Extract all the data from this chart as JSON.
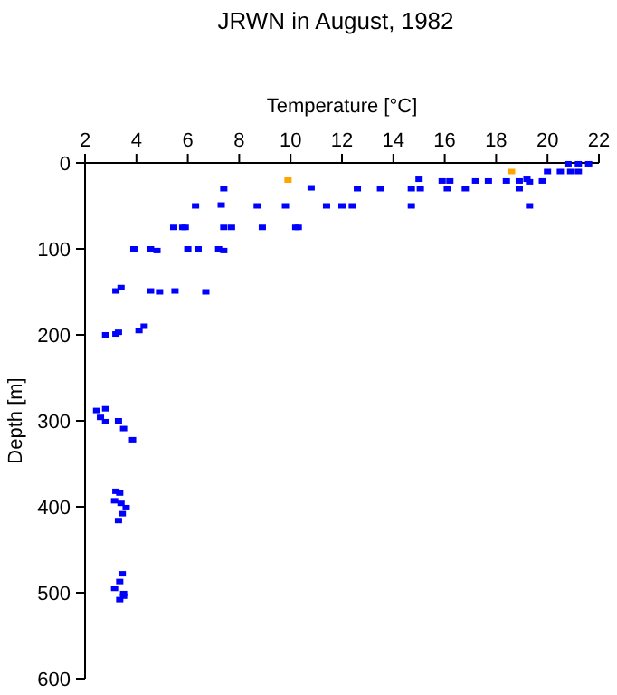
{
  "chart_data": {
    "type": "scatter",
    "title": "JRWN in August, 1982",
    "xlabel": "Temperature [°C]",
    "ylabel": "Depth [m]",
    "xlim": [
      2,
      22
    ],
    "xticks": [
      2,
      4,
      6,
      8,
      10,
      12,
      14,
      16,
      18,
      20,
      22
    ],
    "ylim": [
      600,
      0
    ],
    "yticks": [
      0,
      100,
      200,
      300,
      400,
      500,
      600
    ],
    "marker": "square",
    "grid": false,
    "series": [
      {
        "color": "#0000ff",
        "x": [
          7.4,
          10.8,
          6.3,
          7.3,
          8.7,
          9.8,
          11.4,
          12.0,
          5.45,
          5.8,
          5.9,
          7.4,
          7.7,
          8.9,
          10.2,
          10.3,
          3.9,
          4.55,
          4.8,
          6.0,
          6.4,
          7.2,
          7.4,
          3.4,
          3.2,
          4.55,
          4.9,
          5.5,
          6.7,
          2.8,
          3.2,
          3.3,
          4.1,
          4.3,
          15.0,
          15.9,
          16.2,
          17.2,
          17.7,
          18.4,
          18.9,
          19.2,
          19.8,
          20.0,
          20.5,
          20.8,
          21.2,
          21.6,
          20.9,
          21.2,
          12.6,
          13.5,
          14.7,
          15.05,
          16.1,
          16.8,
          18.9,
          19.3,
          12.4,
          14.7,
          19.3,
          2.45,
          2.6,
          2.8,
          2.8,
          3.3,
          3.5,
          3.85,
          3.2,
          3.35,
          3.15,
          3.4,
          3.6,
          3.45,
          3.3,
          3.45,
          3.35,
          3.15,
          3.5,
          3.5,
          3.35
        ],
        "values": [
          30,
          29,
          50,
          49,
          50,
          50,
          50,
          50,
          75,
          75,
          75,
          75,
          75,
          75,
          75,
          75,
          100,
          100,
          102,
          100,
          100,
          100,
          102,
          145,
          149,
          149,
          150,
          149,
          150,
          200,
          199,
          197,
          195,
          190,
          19,
          21,
          21,
          21,
          21,
          21,
          21,
          19,
          21,
          10,
          10,
          1,
          1,
          1,
          10,
          10,
          30,
          30,
          30,
          30,
          30,
          30,
          30,
          22,
          50,
          50,
          50,
          288,
          296,
          286,
          301,
          300,
          309,
          322,
          382,
          384,
          393,
          396,
          401,
          408,
          416,
          478,
          487,
          495,
          501,
          504,
          508
        ]
      },
      {
        "color": "#ffa500",
        "x": [
          9.9,
          18.6
        ],
        "values": [
          20,
          10
        ]
      }
    ]
  }
}
